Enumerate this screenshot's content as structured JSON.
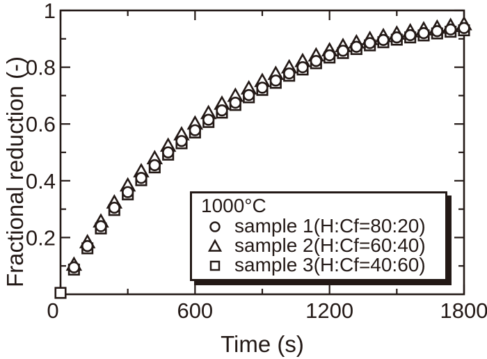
{
  "colors": {
    "ink": "#231916",
    "background": "#ffffff"
  },
  "chart_data": {
    "type": "scatter",
    "title": "",
    "xlabel": "Time (s)",
    "ylabel": "Fractional reduction (-)",
    "xlim": [
      0,
      1800
    ],
    "ylim": [
      0,
      1
    ],
    "grid": false,
    "x_major_ticks": [
      0,
      600,
      1200,
      1800
    ],
    "x_minor_ticks": [
      300,
      900,
      1500
    ],
    "x_tick_labels": [
      "0",
      "600",
      "1200",
      "1800"
    ],
    "y_major_ticks": [
      0.2,
      0.4,
      0.6,
      0.8,
      1
    ],
    "y_minor_ticks": [
      0.1,
      0.3,
      0.5,
      0.7,
      0.9
    ],
    "y_tick_labels": [
      "0.2",
      "0.4",
      "0.6",
      "0.8",
      "1"
    ],
    "legend": {
      "position": "inside-bottom-right",
      "title": "1000°C",
      "items": [
        {
          "marker": "circle",
          "label": "sample 1(H:Cf=80:20)"
        },
        {
          "marker": "triangle",
          "label": "sample 2(H:Cf=60:40)"
        },
        {
          "marker": "square",
          "label": "sample 3(H:Cf=40:60)"
        }
      ]
    },
    "series": [
      {
        "name": "sample 1(H:Cf=80:20)",
        "marker": "circle",
        "x": [
          60,
          120,
          180,
          240,
          300,
          360,
          420,
          480,
          540,
          600,
          660,
          720,
          780,
          840,
          900,
          960,
          1020,
          1080,
          1140,
          1200,
          1260,
          1320,
          1380,
          1440,
          1500,
          1560,
          1620,
          1680,
          1740,
          1800
        ],
        "y": [
          0.095,
          0.17,
          0.24,
          0.305,
          0.36,
          0.41,
          0.455,
          0.5,
          0.54,
          0.578,
          0.615,
          0.648,
          0.675,
          0.702,
          0.728,
          0.753,
          0.778,
          0.8,
          0.822,
          0.842,
          0.858,
          0.872,
          0.885,
          0.896,
          0.905,
          0.913,
          0.92,
          0.927,
          0.933,
          0.938
        ]
      },
      {
        "name": "sample 2(H:Cf=60:40)",
        "marker": "triangle",
        "x": [
          60,
          120,
          180,
          240,
          300,
          360,
          420,
          480,
          540,
          600,
          660,
          720,
          780,
          840,
          900,
          960,
          1020,
          1080,
          1140,
          1200,
          1260,
          1320,
          1380,
          1440,
          1500,
          1560,
          1620,
          1680,
          1740,
          1800
        ],
        "y": [
          0.103,
          0.182,
          0.255,
          0.322,
          0.382,
          0.432,
          0.478,
          0.522,
          0.562,
          0.6,
          0.637,
          0.67,
          0.698,
          0.724,
          0.75,
          0.775,
          0.798,
          0.82,
          0.84,
          0.858,
          0.873,
          0.886,
          0.898,
          0.908,
          0.917,
          0.925,
          0.932,
          0.938,
          0.944,
          0.95
        ]
      },
      {
        "name": "sample 3(H:Cf=40:60)",
        "marker": "square",
        "x": [
          0,
          60,
          120,
          180,
          240,
          300,
          360,
          420,
          480,
          540,
          600,
          660,
          720,
          780,
          840,
          900,
          960,
          1020,
          1080,
          1140,
          1200,
          1260,
          1320,
          1380,
          1440,
          1500,
          1560,
          1620,
          1680,
          1740,
          1800
        ],
        "y": [
          0.005,
          0.087,
          0.162,
          0.232,
          0.297,
          0.352,
          0.402,
          0.447,
          0.492,
          0.532,
          0.57,
          0.607,
          0.64,
          0.667,
          0.694,
          0.72,
          0.745,
          0.77,
          0.792,
          0.814,
          0.834,
          0.85,
          0.864,
          0.877,
          0.888,
          0.897,
          0.905,
          0.912,
          0.919,
          0.925,
          0.93
        ]
      }
    ]
  }
}
